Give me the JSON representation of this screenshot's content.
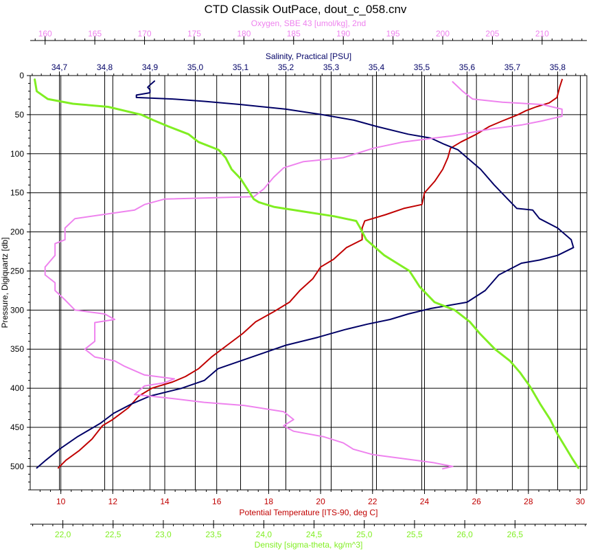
{
  "chart_data": {
    "type": "line",
    "title": "CTD Classik OutPace, dout_c_058.cnv",
    "grid": true,
    "y_axis": {
      "label": "Pressure, Digiquartz [db]",
      "range": [
        530,
        0
      ],
      "ticks": [
        0,
        50,
        100,
        150,
        200,
        250,
        300,
        350,
        400,
        450,
        500
      ],
      "tick_labels": [
        "0",
        "50",
        "100",
        "150",
        "200",
        "250",
        "300",
        "350",
        "400",
        "450",
        "500"
      ]
    },
    "x_axes": [
      {
        "id": "oxygen",
        "label": "Oxygen, SBE 43 [umol/kg], 2nd",
        "color": "#ee82ee",
        "range": [
          158.5,
          214.5
        ],
        "ticks": [
          160,
          165,
          170,
          175,
          180,
          185,
          190,
          195,
          200,
          205,
          210
        ],
        "tick_labels": [
          "160",
          "165",
          "170",
          "175",
          "180",
          "185",
          "190",
          "195",
          "200",
          "205",
          "210"
        ]
      },
      {
        "id": "salinity",
        "label": "Salinity, Practical [PSU]",
        "color": "#000066",
        "range": [
          34.6355,
          35.8645
        ],
        "ticks": [
          34.7,
          34.8,
          34.9,
          35.0,
          35.1,
          35.2,
          35.3,
          35.4,
          35.5,
          35.6,
          35.7,
          35.8
        ],
        "tick_labels": [
          "34,7",
          "34,8",
          "34,9",
          "35,0",
          "35,1",
          "35,2",
          "35,3",
          "35,4",
          "35,5",
          "35,6",
          "35,7",
          "35,8"
        ]
      },
      {
        "id": "temperature",
        "label": "Potential Temperature [ITS-90, deg C]",
        "color": "#c00000",
        "range": [
          8.82,
          30.25
        ],
        "ticks": [
          10,
          12,
          14,
          16,
          18,
          20,
          22,
          24,
          26,
          28,
          30
        ],
        "tick_labels": [
          "10",
          "12",
          "14",
          "16",
          "18",
          "20",
          "22",
          "24",
          "26",
          "28",
          "30"
        ]
      },
      {
        "id": "density",
        "label": "Density [sigma-theta, kg/m^3]",
        "color": "#80ee22",
        "range": [
          21.675,
          27.215
        ],
        "ticks": [
          22.0,
          22.5,
          23.0,
          23.5,
          24.0,
          24.5,
          25.0,
          25.5,
          26.0,
          26.5
        ],
        "tick_labels": [
          "22,0",
          "22,5",
          "23,0",
          "23,5",
          "24,0",
          "24,5",
          "25,0",
          "25,5",
          "26,0",
          "26,5"
        ]
      }
    ],
    "series": [
      {
        "axis": "temperature",
        "color": "#c00000",
        "points": [
          [
            29.3,
            5
          ],
          [
            29.2,
            15
          ],
          [
            29.1,
            28
          ],
          [
            28.8,
            35
          ],
          [
            28.3,
            40
          ],
          [
            27.9,
            45
          ],
          [
            27.6,
            50
          ],
          [
            27.0,
            58
          ],
          [
            26.5,
            65
          ],
          [
            26.0,
            75
          ],
          [
            25.4,
            85
          ],
          [
            25.0,
            93
          ],
          [
            24.9,
            105
          ],
          [
            24.7,
            120
          ],
          [
            24.4,
            135
          ],
          [
            24.0,
            150
          ],
          [
            23.9,
            165
          ],
          [
            23.2,
            170
          ],
          [
            22.5,
            178
          ],
          [
            21.7,
            186
          ],
          [
            21.6,
            195
          ],
          [
            21.6,
            210
          ],
          [
            21.0,
            220
          ],
          [
            20.5,
            235
          ],
          [
            20.0,
            245
          ],
          [
            19.7,
            260
          ],
          [
            19.2,
            275
          ],
          [
            18.8,
            290
          ],
          [
            18.2,
            302
          ],
          [
            17.5,
            315
          ],
          [
            17.0,
            330
          ],
          [
            16.4,
            345
          ],
          [
            15.8,
            360
          ],
          [
            15.3,
            375
          ],
          [
            14.8,
            385
          ],
          [
            14.3,
            392
          ],
          [
            13.5,
            400
          ],
          [
            13.0,
            410
          ],
          [
            12.6,
            425
          ],
          [
            12.0,
            440
          ],
          [
            11.6,
            448
          ],
          [
            11.2,
            465
          ],
          [
            10.7,
            480
          ],
          [
            10.2,
            492
          ],
          [
            9.9,
            502
          ]
        ]
      },
      {
        "axis": "salinity",
        "color": "#000066",
        "points": [
          [
            34.91,
            7
          ],
          [
            34.9,
            12
          ],
          [
            34.895,
            15
          ],
          [
            34.9,
            18
          ],
          [
            34.9,
            22
          ],
          [
            34.87,
            25
          ],
          [
            34.87,
            28
          ],
          [
            34.95,
            30
          ],
          [
            35.02,
            33
          ],
          [
            35.1,
            37
          ],
          [
            35.2,
            43
          ],
          [
            35.28,
            50
          ],
          [
            35.35,
            57
          ],
          [
            35.4,
            65
          ],
          [
            35.47,
            75
          ],
          [
            35.52,
            80
          ],
          [
            35.55,
            88
          ],
          [
            35.58,
            95
          ],
          [
            35.6,
            105
          ],
          [
            35.63,
            120
          ],
          [
            35.66,
            140
          ],
          [
            35.69,
            158
          ],
          [
            35.71,
            170
          ],
          [
            35.745,
            172
          ],
          [
            35.76,
            183
          ],
          [
            35.8,
            195
          ],
          [
            35.83,
            210
          ],
          [
            35.835,
            220
          ],
          [
            35.8,
            230
          ],
          [
            35.76,
            236
          ],
          [
            35.72,
            240
          ],
          [
            35.67,
            255
          ],
          [
            35.64,
            275
          ],
          [
            35.6,
            290
          ],
          [
            35.52,
            298
          ],
          [
            35.47,
            305
          ],
          [
            35.43,
            312
          ],
          [
            35.38,
            318
          ],
          [
            35.33,
            325
          ],
          [
            35.27,
            335
          ],
          [
            35.2,
            345
          ],
          [
            35.15,
            355
          ],
          [
            35.1,
            365
          ],
          [
            35.05,
            375
          ],
          [
            35.02,
            390
          ],
          [
            34.97,
            400
          ],
          [
            34.9,
            410
          ],
          [
            34.86,
            420
          ],
          [
            34.82,
            432
          ],
          [
            34.79,
            445
          ],
          [
            34.74,
            462
          ],
          [
            34.7,
            478
          ],
          [
            34.67,
            492
          ],
          [
            34.65,
            502
          ]
        ]
      },
      {
        "axis": "oxygen",
        "color": "#ee82ee",
        "points": [
          [
            201,
            8
          ],
          [
            202,
            20
          ],
          [
            203,
            30
          ],
          [
            206,
            34
          ],
          [
            210,
            37
          ],
          [
            212,
            43
          ],
          [
            212,
            52
          ],
          [
            210,
            58
          ],
          [
            208,
            63
          ],
          [
            205,
            68
          ],
          [
            201,
            77
          ],
          [
            196,
            85
          ],
          [
            193,
            93
          ],
          [
            190,
            105
          ],
          [
            186,
            110
          ],
          [
            184,
            118
          ],
          [
            183,
            130
          ],
          [
            182,
            145
          ],
          [
            181,
            155
          ],
          [
            172,
            158
          ],
          [
            170,
            165
          ],
          [
            169,
            172
          ],
          [
            163,
            183
          ],
          [
            162,
            195
          ],
          [
            162,
            210
          ],
          [
            161,
            215
          ],
          [
            161,
            230
          ],
          [
            160,
            245
          ],
          [
            160,
            255
          ],
          [
            161,
            265
          ],
          [
            161,
            275
          ],
          [
            162,
            287
          ],
          [
            163,
            300
          ],
          [
            166,
            305
          ],
          [
            167,
            312
          ],
          [
            165,
            316
          ],
          [
            165,
            322
          ],
          [
            165,
            340
          ],
          [
            164,
            350
          ],
          [
            165,
            360
          ],
          [
            167,
            365
          ],
          [
            168,
            372
          ],
          [
            170,
            383
          ],
          [
            173,
            388
          ],
          [
            172,
            393
          ],
          [
            170,
            397
          ],
          [
            169,
            408
          ],
          [
            172,
            412
          ],
          [
            176,
            418
          ],
          [
            180,
            422
          ],
          [
            184,
            430
          ],
          [
            185,
            440
          ],
          [
            184,
            448
          ],
          [
            185,
            455
          ],
          [
            188,
            462
          ],
          [
            190,
            470
          ],
          [
            191,
            478
          ],
          [
            193,
            485
          ],
          [
            196,
            490
          ],
          [
            199,
            495
          ],
          [
            201,
            500
          ],
          [
            200,
            503
          ]
        ]
      },
      {
        "axis": "density",
        "color": "#80ee22",
        "points": [
          [
            21.72,
            5
          ],
          [
            21.74,
            20
          ],
          [
            21.85,
            30
          ],
          [
            22.1,
            36
          ],
          [
            22.45,
            40
          ],
          [
            22.78,
            50
          ],
          [
            22.9,
            57
          ],
          [
            23.05,
            65
          ],
          [
            23.25,
            75
          ],
          [
            23.35,
            85
          ],
          [
            23.55,
            95
          ],
          [
            23.62,
            105
          ],
          [
            23.68,
            120
          ],
          [
            23.77,
            132
          ],
          [
            23.82,
            142
          ],
          [
            23.9,
            158
          ],
          [
            23.95,
            162
          ],
          [
            24.1,
            168
          ],
          [
            24.4,
            174
          ],
          [
            24.7,
            180
          ],
          [
            24.92,
            186
          ],
          [
            24.96,
            195
          ],
          [
            25.02,
            210
          ],
          [
            25.2,
            230
          ],
          [
            25.45,
            250
          ],
          [
            25.55,
            270
          ],
          [
            25.7,
            290
          ],
          [
            25.9,
            300
          ],
          [
            26.05,
            315
          ],
          [
            26.15,
            330
          ],
          [
            26.3,
            350
          ],
          [
            26.45,
            365
          ],
          [
            26.55,
            380
          ],
          [
            26.65,
            398
          ],
          [
            26.75,
            420
          ],
          [
            26.85,
            440
          ],
          [
            26.92,
            458
          ],
          [
            27.0,
            475
          ],
          [
            27.07,
            490
          ],
          [
            27.13,
            502
          ]
        ]
      }
    ]
  }
}
